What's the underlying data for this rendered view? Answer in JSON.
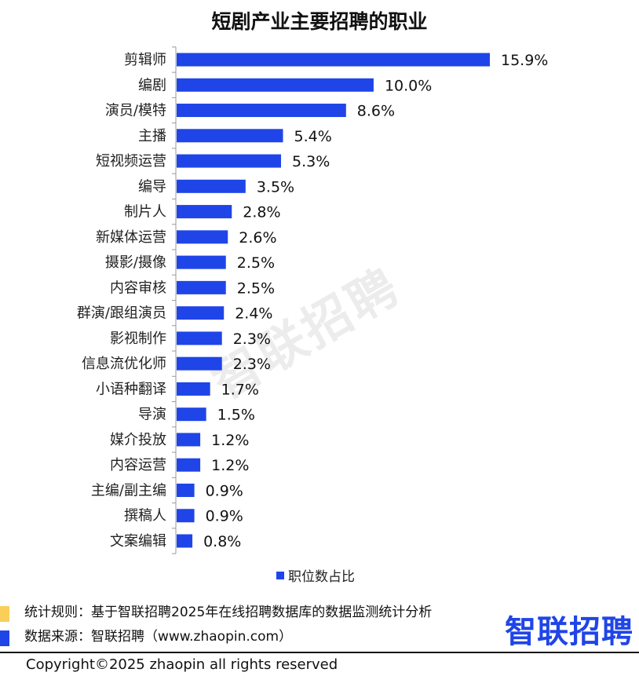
{
  "chart_data": {
    "type": "bar",
    "orientation": "horizontal",
    "title": "短剧产业主要招聘的职业",
    "categories": [
      "剪辑师",
      "编剧",
      "演员/模特",
      "主播",
      "短视频运营",
      "编导",
      "制片人",
      "新媒体运营",
      "摄影/摄像",
      "内容审核",
      "群演/跟组演员",
      "影视制作",
      "信息流优化师",
      "小语种翻译",
      "导演",
      "媒介投放",
      "内容运营",
      "主编/副主编",
      "撰稿人",
      "文案编辑"
    ],
    "series": [
      {
        "name": "职位数占比",
        "values": [
          15.9,
          10.0,
          8.6,
          5.4,
          5.3,
          3.5,
          2.8,
          2.6,
          2.5,
          2.5,
          2.4,
          2.3,
          2.3,
          1.7,
          1.5,
          1.2,
          1.2,
          0.9,
          0.9,
          0.8
        ]
      }
    ],
    "value_suffix": "%",
    "xlim": [
      0,
      16
    ],
    "grid": false,
    "legend_position": "bottom",
    "bar_color": "#1f45e8"
  },
  "notes": {
    "rule": "统计规则：基于智联招聘2025年在线招聘数据库的数据监测统计分析",
    "source": "数据来源：智联招聘（www.zhaopin.com）",
    "rule_color": "#f9cf5a",
    "source_color": "#1f45e8"
  },
  "logo": "智联招聘",
  "watermark": "智联招聘",
  "copyright": "Copyright©2025 zhaopin all rights reserved"
}
